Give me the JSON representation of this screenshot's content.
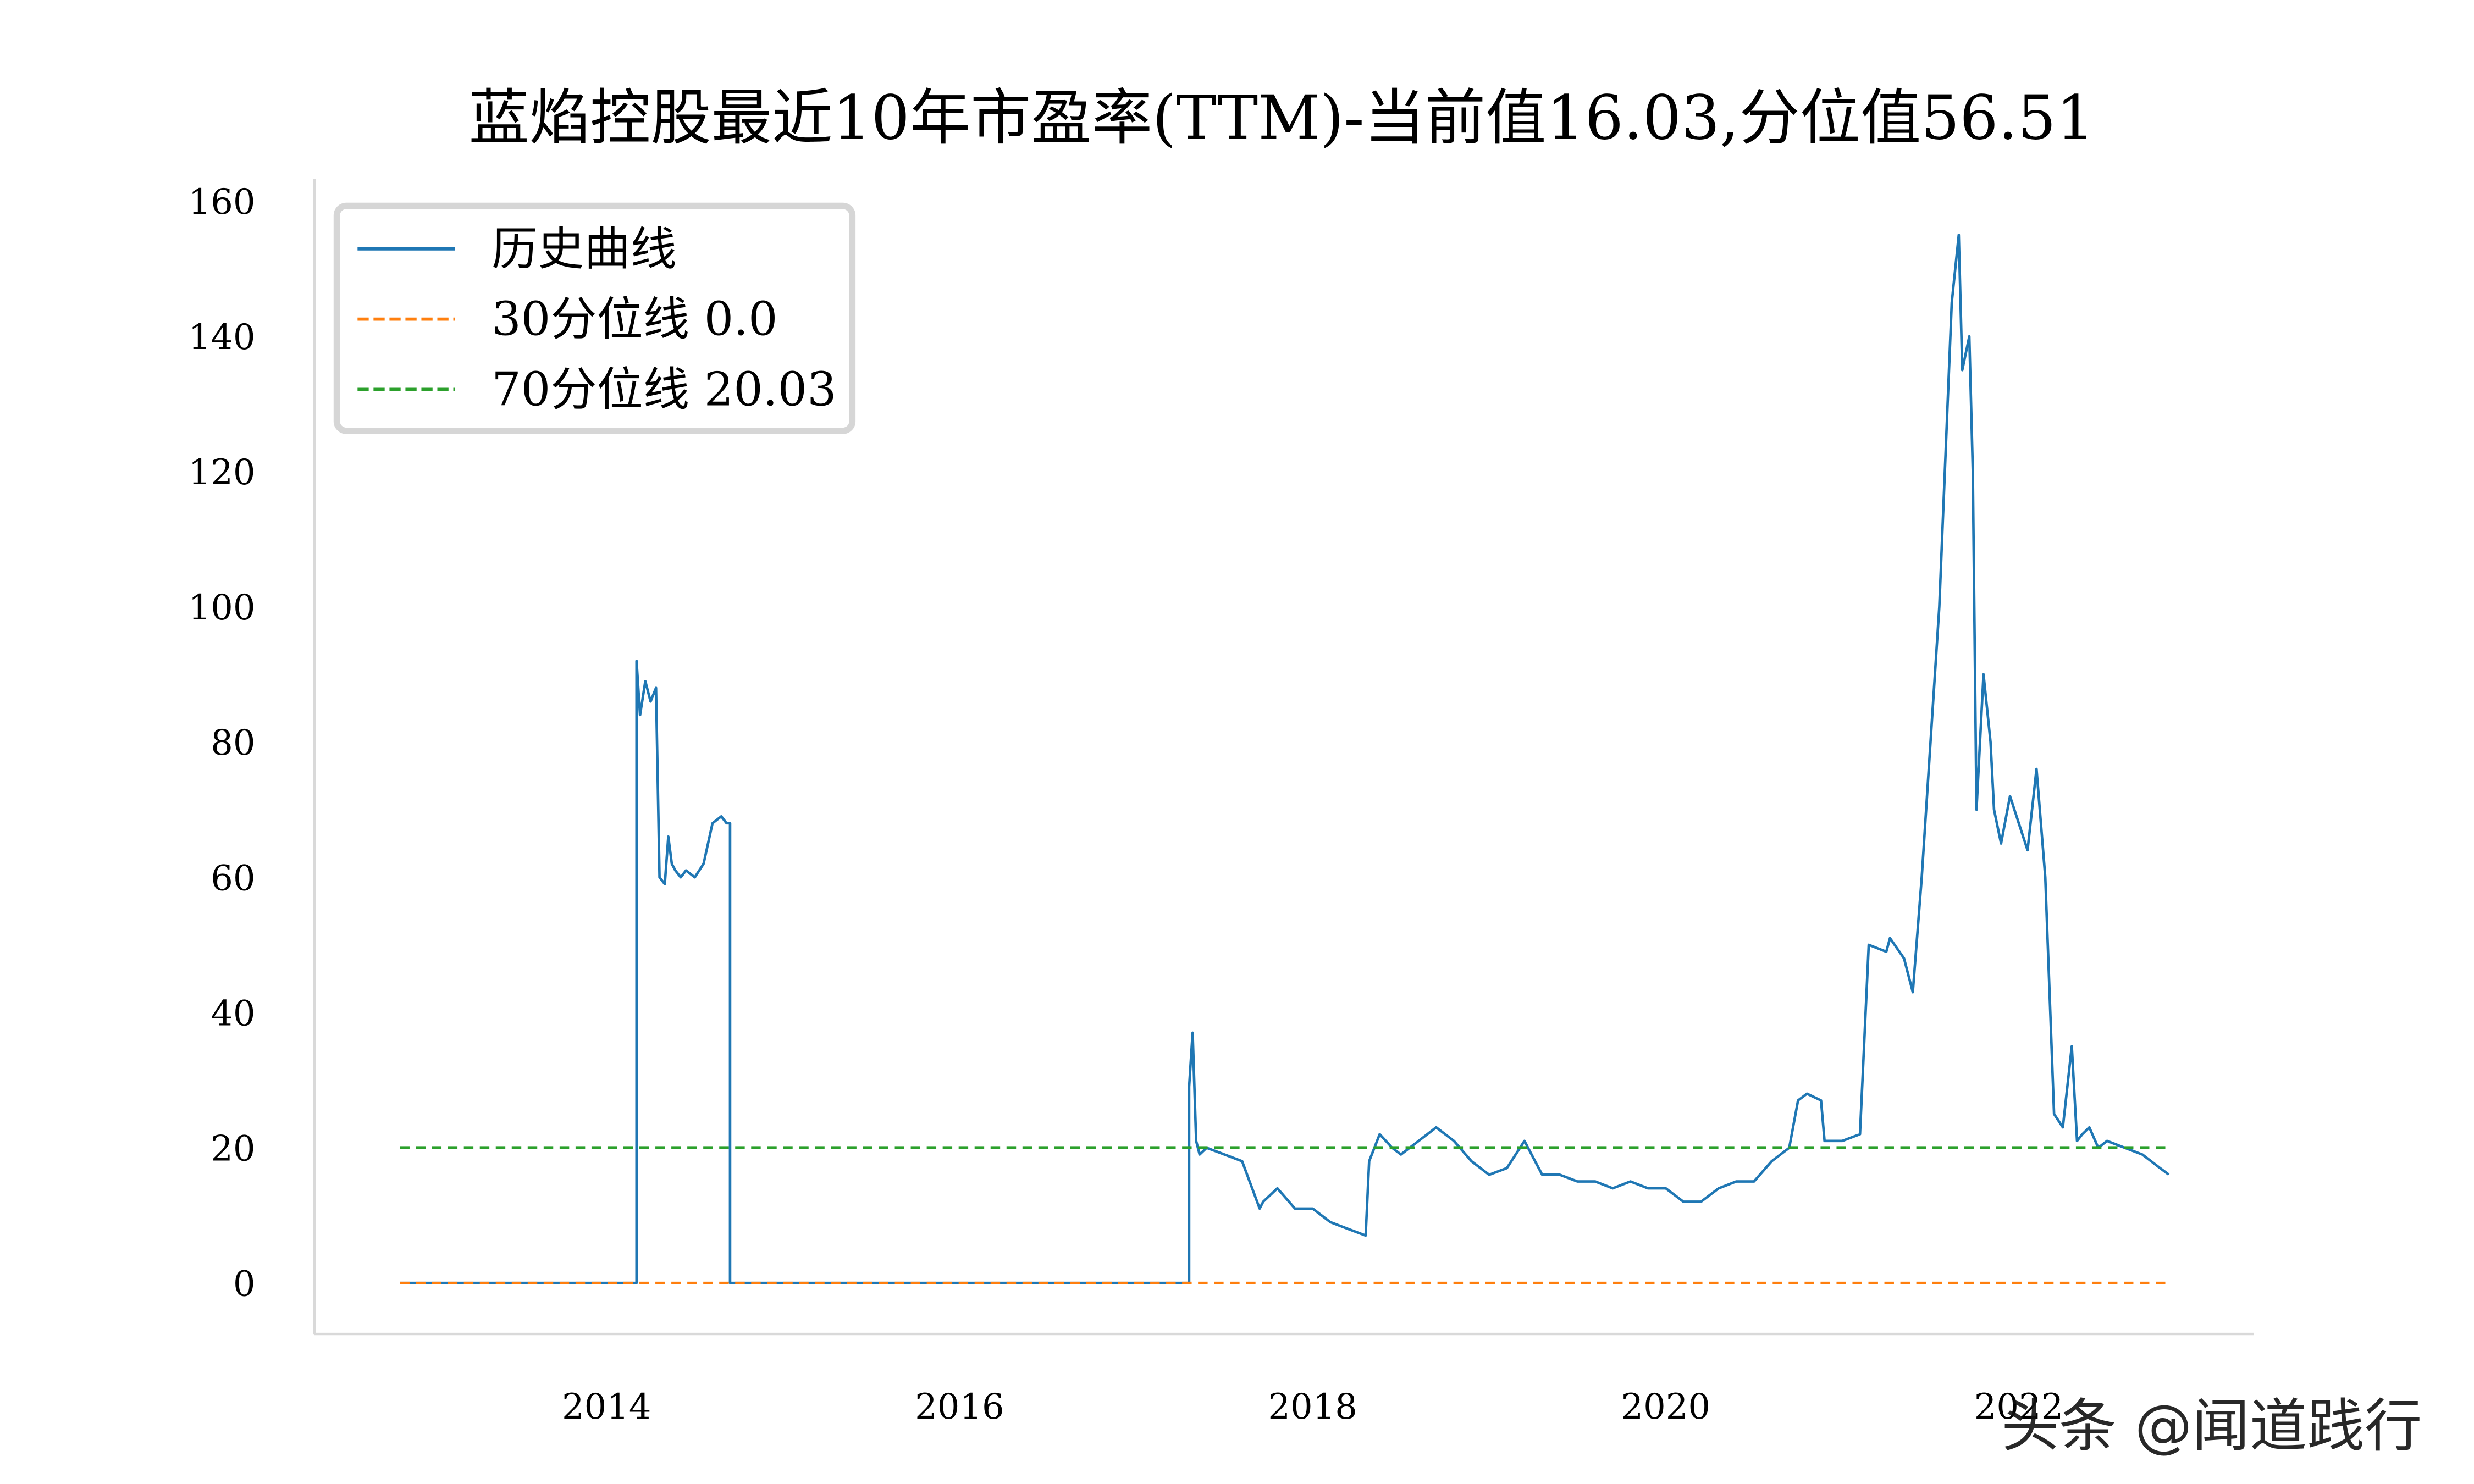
{
  "chart_data": {
    "type": "line",
    "title": "蓝焰控股最近10年市盈率(TTM)-当前值16.03,分位值56.51",
    "xlabel": "",
    "ylabel": "",
    "xlim": [
      2012.6,
      2023.3
    ],
    "ylim": [
      -8,
      165
    ],
    "x_ticks": [
      2014,
      2016,
      2018,
      2020,
      2022
    ],
    "x_tick_labels": [
      "2014",
      "2016",
      "2018",
      "2020",
      "2022"
    ],
    "y_ticks": [
      0,
      20,
      40,
      60,
      80,
      100,
      120,
      140,
      160
    ],
    "y_tick_labels": [
      "0",
      "20",
      "40",
      "60",
      "80",
      "100",
      "120",
      "140",
      "160"
    ],
    "grid": false,
    "legend_position": "upper left",
    "current_value": 16.03,
    "percentile_value": 56.51,
    "series": [
      {
        "name": "历史曲线",
        "color": "#1f77b4",
        "style": "solid",
        "x": [
          2012.83,
          2014.17,
          2014.17,
          2014.19,
          2014.22,
          2014.25,
          2014.28,
          2014.3,
          2014.33,
          2014.35,
          2014.37,
          2014.39,
          2014.42,
          2014.45,
          2014.5,
          2014.55,
          2014.6,
          2014.65,
          2014.68,
          2014.7,
          2014.7,
          2017.3,
          2017.3,
          2017.32,
          2017.34,
          2017.36,
          2017.4,
          2017.5,
          2017.6,
          2017.7,
          2017.72,
          2017.8,
          2017.9,
          2018.0,
          2018.1,
          2018.2,
          2018.3,
          2018.32,
          2018.38,
          2018.45,
          2018.5,
          2018.6,
          2018.7,
          2018.8,
          2018.9,
          2019.0,
          2019.1,
          2019.2,
          2019.3,
          2019.4,
          2019.5,
          2019.6,
          2019.7,
          2019.8,
          2019.9,
          2020.0,
          2020.1,
          2020.2,
          2020.3,
          2020.4,
          2020.5,
          2020.6,
          2020.7,
          2020.75,
          2020.8,
          2020.88,
          2020.9,
          2021.0,
          2021.1,
          2021.15,
          2021.25,
          2021.27,
          2021.35,
          2021.4,
          2021.45,
          2021.5,
          2021.55,
          2021.62,
          2021.66,
          2021.68,
          2021.72,
          2021.74,
          2021.76,
          2021.8,
          2021.84,
          2021.86,
          2021.9,
          2021.95,
          2022.0,
          2022.05,
          2022.1,
          2022.15,
          2022.2,
          2022.25,
          2022.3,
          2022.33,
          2022.36,
          2022.4,
          2022.45,
          2022.5,
          2022.6,
          2022.7,
          2022.8,
          2022.85
        ],
        "y": [
          0,
          0,
          92,
          84,
          89,
          86,
          88,
          60,
          59,
          66,
          62,
          61,
          60,
          61,
          60,
          62,
          68,
          69,
          68,
          68,
          0,
          0,
          29,
          37,
          21,
          19,
          20,
          19,
          18,
          11,
          12,
          14,
          11,
          11,
          9,
          8,
          7,
          18,
          22,
          20,
          19,
          21,
          23,
          21,
          18,
          16,
          17,
          21,
          16,
          16,
          15,
          15,
          14,
          15,
          14,
          14,
          12,
          12,
          14,
          15,
          15,
          18,
          20,
          27,
          28,
          27,
          21,
          21,
          22,
          50,
          49,
          51,
          48,
          43,
          60,
          80,
          100,
          145,
          155,
          135,
          140,
          120,
          70,
          90,
          80,
          70,
          65,
          72,
          68,
          64,
          76,
          60,
          25,
          23,
          35,
          21,
          22,
          23,
          20,
          21,
          20,
          19,
          17,
          16.03
        ]
      },
      {
        "name": "30分位线 0.0",
        "color": "#ff7f0e",
        "style": "dashed",
        "x": [
          2012.83,
          2022.85
        ],
        "y": [
          0.0,
          0.0
        ]
      },
      {
        "name": "70分位线 20.03",
        "color": "#2ca02c",
        "style": "dashed",
        "x": [
          2012.83,
          2022.85
        ],
        "y": [
          20.03,
          20.03
        ]
      }
    ]
  },
  "legend": {
    "items": [
      {
        "label": "历史曲线",
        "color": "#1f77b4",
        "style": "solid"
      },
      {
        "label": "30分位线 0.0",
        "color": "#ff7f0e",
        "style": "dashed"
      },
      {
        "label": "70分位线 20.03",
        "color": "#2ca02c",
        "style": "dashed"
      }
    ]
  },
  "watermark": "头条 @闻道践行"
}
